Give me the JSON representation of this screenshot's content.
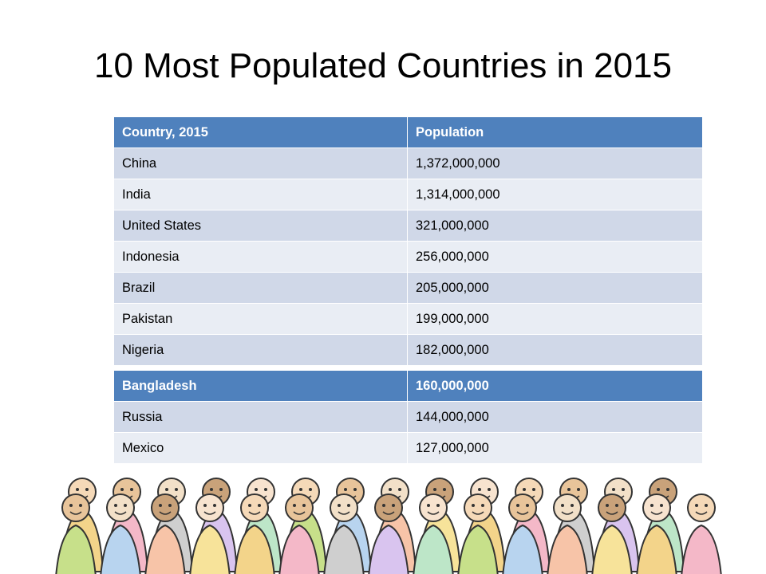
{
  "title": "10 Most Populated Countries in 2015",
  "table": {
    "header": [
      "Country, 2015",
      "Population"
    ],
    "rows": [
      [
        "China",
        "1,372,000,000"
      ],
      [
        "India",
        "1,314,000,000"
      ],
      [
        "United States",
        "321,000,000"
      ],
      [
        "Indonesia",
        "256,000,000"
      ],
      [
        "Brazil",
        "205,000,000"
      ],
      [
        "Pakistan",
        "199,000,000"
      ],
      [
        "Nigeria",
        "182,000,000"
      ]
    ]
  },
  "table2": {
    "header": [
      "Bangladesh",
      "160,000,000"
    ],
    "rows": [
      [
        "Russia",
        "144,000,000"
      ],
      [
        "Mexico",
        "127,000,000"
      ]
    ]
  }
}
